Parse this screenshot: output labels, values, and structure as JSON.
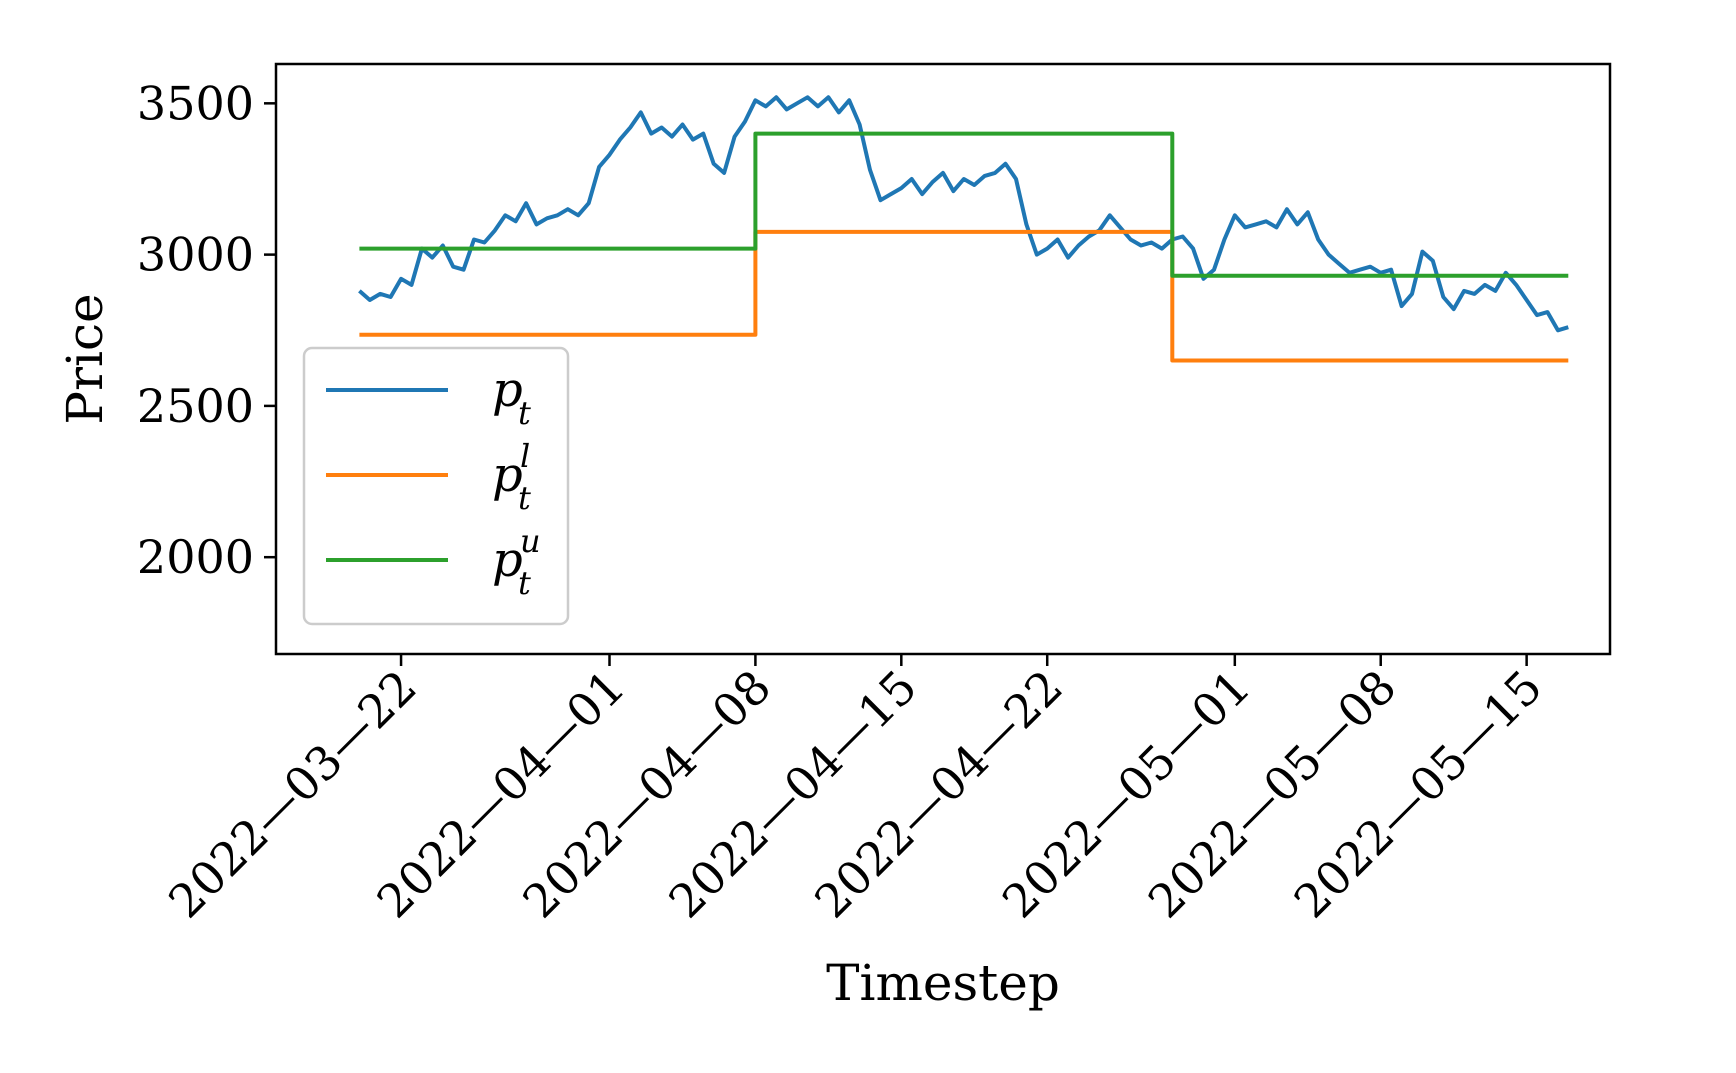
{
  "chart_data": {
    "type": "line",
    "title": "",
    "xlabel": "Timestep",
    "ylabel": "Price",
    "x_range": [
      "2022-03-16",
      "2022-05-19"
    ],
    "ylim": [
      1680,
      3630
    ],
    "grid": false,
    "legend_placement": "lower-left",
    "x_ticks": [
      {
        "date": "2022-03-22",
        "label": "2022—03—22"
      },
      {
        "date": "2022-04-01",
        "label": "2022—04—01"
      },
      {
        "date": "2022-04-08",
        "label": "2022—04—08"
      },
      {
        "date": "2022-04-15",
        "label": "2022—04—15"
      },
      {
        "date": "2022-04-22",
        "label": "2022—04—22"
      },
      {
        "date": "2022-05-01",
        "label": "2022—05—01"
      },
      {
        "date": "2022-05-08",
        "label": "2022—05—08"
      },
      {
        "date": "2022-05-15",
        "label": "2022—05—15"
      }
    ],
    "y_ticks": [
      {
        "value": 2000,
        "label": "2000"
      },
      {
        "value": 2500,
        "label": "2500"
      },
      {
        "value": 3000,
        "label": "3000"
      },
      {
        "value": 3500,
        "label": "3500"
      }
    ],
    "series": [
      {
        "key": "p",
        "legend": {
          "base": "p",
          "sub": "t",
          "sup": ""
        },
        "color": "#1f77b4",
        "type": "line",
        "points": [
          [
            "2022-03-20T00:00",
            2880
          ],
          [
            "2022-03-20T12:00",
            2850
          ],
          [
            "2022-03-21T00:00",
            2870
          ],
          [
            "2022-03-21T12:00",
            2860
          ],
          [
            "2022-03-22T00:00",
            2920
          ],
          [
            "2022-03-22T12:00",
            2900
          ],
          [
            "2022-03-23T00:00",
            3020
          ],
          [
            "2022-03-23T12:00",
            2990
          ],
          [
            "2022-03-24T00:00",
            3030
          ],
          [
            "2022-03-24T12:00",
            2960
          ],
          [
            "2022-03-25T00:00",
            2950
          ],
          [
            "2022-03-25T12:00",
            3050
          ],
          [
            "2022-03-26T00:00",
            3040
          ],
          [
            "2022-03-26T12:00",
            3080
          ],
          [
            "2022-03-27T00:00",
            3130
          ],
          [
            "2022-03-27T12:00",
            3110
          ],
          [
            "2022-03-28T00:00",
            3170
          ],
          [
            "2022-03-28T12:00",
            3100
          ],
          [
            "2022-03-29T00:00",
            3120
          ],
          [
            "2022-03-29T12:00",
            3130
          ],
          [
            "2022-03-30T00:00",
            3150
          ],
          [
            "2022-03-30T12:00",
            3130
          ],
          [
            "2022-03-31T00:00",
            3170
          ],
          [
            "2022-03-31T12:00",
            3290
          ],
          [
            "2022-04-01T00:00",
            3330
          ],
          [
            "2022-04-01T12:00",
            3380
          ],
          [
            "2022-04-02T00:00",
            3420
          ],
          [
            "2022-04-02T12:00",
            3470
          ],
          [
            "2022-04-03T00:00",
            3400
          ],
          [
            "2022-04-03T12:00",
            3420
          ],
          [
            "2022-04-04T00:00",
            3390
          ],
          [
            "2022-04-04T12:00",
            3430
          ],
          [
            "2022-04-05T00:00",
            3380
          ],
          [
            "2022-04-05T12:00",
            3400
          ],
          [
            "2022-04-06T00:00",
            3300
          ],
          [
            "2022-04-06T12:00",
            3270
          ],
          [
            "2022-04-07T00:00",
            3390
          ],
          [
            "2022-04-07T12:00",
            3440
          ],
          [
            "2022-04-08T00:00",
            3510
          ],
          [
            "2022-04-08T12:00",
            3490
          ],
          [
            "2022-04-09T00:00",
            3520
          ],
          [
            "2022-04-09T12:00",
            3480
          ],
          [
            "2022-04-10T00:00",
            3500
          ],
          [
            "2022-04-10T12:00",
            3520
          ],
          [
            "2022-04-11T00:00",
            3490
          ],
          [
            "2022-04-11T12:00",
            3520
          ],
          [
            "2022-04-12T00:00",
            3470
          ],
          [
            "2022-04-12T12:00",
            3510
          ],
          [
            "2022-04-13T00:00",
            3430
          ],
          [
            "2022-04-13T12:00",
            3280
          ],
          [
            "2022-04-14T00:00",
            3180
          ],
          [
            "2022-04-14T12:00",
            3200
          ],
          [
            "2022-04-15T00:00",
            3220
          ],
          [
            "2022-04-15T12:00",
            3250
          ],
          [
            "2022-04-16T00:00",
            3200
          ],
          [
            "2022-04-16T12:00",
            3240
          ],
          [
            "2022-04-17T00:00",
            3270
          ],
          [
            "2022-04-17T12:00",
            3210
          ],
          [
            "2022-04-18T00:00",
            3250
          ],
          [
            "2022-04-18T12:00",
            3230
          ],
          [
            "2022-04-19T00:00",
            3260
          ],
          [
            "2022-04-19T12:00",
            3270
          ],
          [
            "2022-04-20T00:00",
            3300
          ],
          [
            "2022-04-20T12:00",
            3250
          ],
          [
            "2022-04-21T00:00",
            3100
          ],
          [
            "2022-04-21T12:00",
            3000
          ],
          [
            "2022-04-22T00:00",
            3020
          ],
          [
            "2022-04-22T12:00",
            3050
          ],
          [
            "2022-04-23T00:00",
            2990
          ],
          [
            "2022-04-23T12:00",
            3030
          ],
          [
            "2022-04-24T00:00",
            3060
          ],
          [
            "2022-04-24T12:00",
            3080
          ],
          [
            "2022-04-25T00:00",
            3130
          ],
          [
            "2022-04-25T12:00",
            3090
          ],
          [
            "2022-04-26T00:00",
            3050
          ],
          [
            "2022-04-26T12:00",
            3030
          ],
          [
            "2022-04-27T00:00",
            3040
          ],
          [
            "2022-04-27T12:00",
            3020
          ],
          [
            "2022-04-28T00:00",
            3050
          ],
          [
            "2022-04-28T12:00",
            3060
          ],
          [
            "2022-04-29T00:00",
            3020
          ],
          [
            "2022-04-29T12:00",
            2920
          ],
          [
            "2022-04-30T00:00",
            2950
          ],
          [
            "2022-04-30T12:00",
            3050
          ],
          [
            "2022-05-01T00:00",
            3130
          ],
          [
            "2022-05-01T12:00",
            3090
          ],
          [
            "2022-05-02T00:00",
            3100
          ],
          [
            "2022-05-02T12:00",
            3110
          ],
          [
            "2022-05-03T00:00",
            3090
          ],
          [
            "2022-05-03T12:00",
            3150
          ],
          [
            "2022-05-04T00:00",
            3100
          ],
          [
            "2022-05-04T12:00",
            3140
          ],
          [
            "2022-05-05T00:00",
            3050
          ],
          [
            "2022-05-05T12:00",
            3000
          ],
          [
            "2022-05-06T00:00",
            2970
          ],
          [
            "2022-05-06T12:00",
            2940
          ],
          [
            "2022-05-07T00:00",
            2950
          ],
          [
            "2022-05-07T12:00",
            2960
          ],
          [
            "2022-05-08T00:00",
            2940
          ],
          [
            "2022-05-08T12:00",
            2950
          ],
          [
            "2022-05-09T00:00",
            2830
          ],
          [
            "2022-05-09T12:00",
            2870
          ],
          [
            "2022-05-10T00:00",
            3010
          ],
          [
            "2022-05-10T12:00",
            2980
          ],
          [
            "2022-05-11T00:00",
            2860
          ],
          [
            "2022-05-11T12:00",
            2820
          ],
          [
            "2022-05-12T00:00",
            2880
          ],
          [
            "2022-05-12T12:00",
            2870
          ],
          [
            "2022-05-13T00:00",
            2900
          ],
          [
            "2022-05-13T12:00",
            2880
          ],
          [
            "2022-05-14T00:00",
            2940
          ],
          [
            "2022-05-14T12:00",
            2900
          ],
          [
            "2022-05-15T00:00",
            2850
          ],
          [
            "2022-05-15T12:00",
            2800
          ],
          [
            "2022-05-16T00:00",
            2810
          ],
          [
            "2022-05-16T12:00",
            2750
          ],
          [
            "2022-05-17T00:00",
            2760
          ]
        ]
      },
      {
        "key": "pl",
        "legend": {
          "base": "p",
          "sub": "t",
          "sup": "l"
        },
        "color": "#ff7f0e",
        "type": "step",
        "segments": [
          {
            "start": "2022-03-20T00:00",
            "end": "2022-04-08T00:00",
            "value": 2735
          },
          {
            "start": "2022-04-08T00:00",
            "end": "2022-04-28T00:00",
            "value": 3075
          },
          {
            "start": "2022-04-28T00:00",
            "end": "2022-05-17T00:00",
            "value": 2650
          }
        ]
      },
      {
        "key": "pu",
        "legend": {
          "base": "p",
          "sub": "t",
          "sup": "u"
        },
        "color": "#2ca02c",
        "type": "step",
        "segments": [
          {
            "start": "2022-03-20T00:00",
            "end": "2022-04-08T00:00",
            "value": 3020
          },
          {
            "start": "2022-04-08T00:00",
            "end": "2022-04-28T00:00",
            "value": 3400
          },
          {
            "start": "2022-04-28T00:00",
            "end": "2022-05-17T00:00",
            "value": 2930
          }
        ]
      }
    ]
  }
}
